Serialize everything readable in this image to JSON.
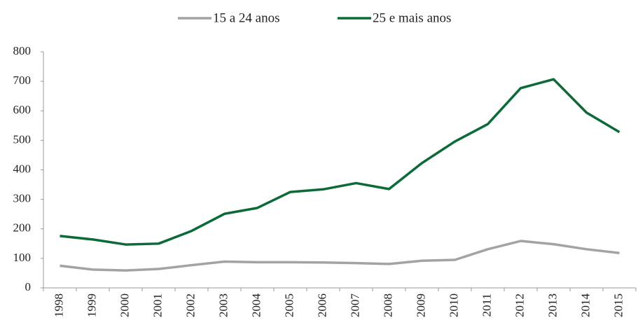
{
  "chart_data": {
    "type": "line",
    "categories": [
      "1998",
      "1999",
      "2000",
      "2001",
      "2002",
      "2003",
      "2004",
      "2005",
      "2006",
      "2007",
      "2008",
      "2009",
      "2010",
      "2011",
      "2012",
      "2013",
      "2014",
      "2015"
    ],
    "series": [
      {
        "name": "15 a 24 anos",
        "color": "#a3a3a3",
        "values": [
          75,
          62,
          59,
          64,
          77,
          89,
          87,
          87,
          86,
          84,
          81,
          92,
          95,
          131,
          159,
          148,
          131,
          118
        ]
      },
      {
        "name": "25 e mais anos",
        "color": "#0b6a38",
        "values": [
          176,
          164,
          147,
          150,
          193,
          251,
          271,
          325,
          334,
          355,
          335,
          423,
          496,
          555,
          677,
          707,
          594,
          528
        ]
      }
    ],
    "ylim": [
      0,
      800
    ],
    "yticks": [
      0,
      100,
      200,
      300,
      400,
      500,
      600,
      700,
      800
    ],
    "legend": "top"
  }
}
